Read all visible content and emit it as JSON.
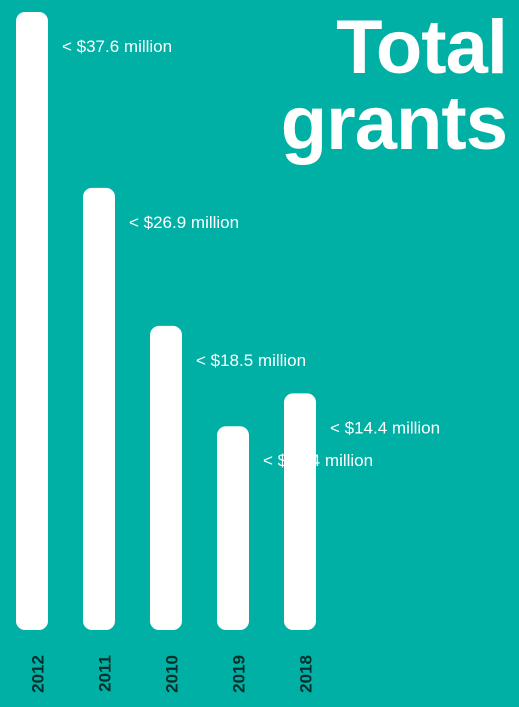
{
  "title_lines": [
    "Total",
    "grants"
  ],
  "colors": {
    "background": "#00b0a5",
    "bar": "#ffffff",
    "text": "#ffffff",
    "year_label": "#002f2c"
  },
  "chart_data": {
    "type": "bar",
    "orientation": "vertical",
    "title": "Total grants",
    "categories": [
      "2012",
      "2011",
      "2010",
      "2019",
      "2018"
    ],
    "values": [
      37.6,
      26.9,
      18.5,
      12.4,
      14.4
    ],
    "labels": [
      "< $37.6 million",
      "< $26.9 million",
      "< $18.5 million",
      "< $12.4 million",
      "< $14.4 million"
    ],
    "unit": "million USD",
    "ylim": [
      0,
      37.6
    ],
    "grid": false,
    "legend": "none"
  }
}
